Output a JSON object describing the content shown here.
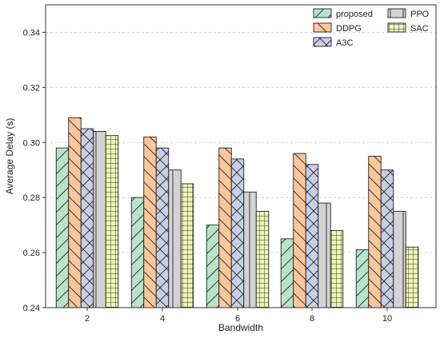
{
  "chart_data": {
    "type": "bar",
    "xlabel": "Bandwidth",
    "ylabel": "Average Delay (s)",
    "categories": [
      "2",
      "4",
      "6",
      "8",
      "10"
    ],
    "ylim": [
      0.24,
      0.35
    ],
    "yticks": [
      "0.24",
      "0.26",
      "0.28",
      "0.30",
      "0.32",
      "0.34"
    ],
    "grid": "horizontal-dashed",
    "legend_position": "top-right",
    "series": [
      {
        "name": "proposed",
        "color": "#b7e4c7",
        "hatch": "diagonal",
        "values": [
          0.298,
          0.28,
          0.27,
          0.265,
          0.261
        ]
      },
      {
        "name": "DDPG",
        "color": "#fcc69b",
        "hatch": "back-diagonal",
        "values": [
          0.309,
          0.302,
          0.298,
          0.296,
          0.295
        ]
      },
      {
        "name": "A3C",
        "color": "#c6cfe6",
        "hatch": "cross-diagonal",
        "values": [
          0.305,
          0.298,
          0.294,
          0.292,
          0.29
        ]
      },
      {
        "name": "PPO",
        "color": "#d3d3d3",
        "hatch": "vertical",
        "values": [
          0.304,
          0.29,
          0.282,
          0.278,
          0.275
        ]
      },
      {
        "name": "SAC",
        "color": "#eef5b5",
        "hatch": "grid",
        "values": [
          0.3025,
          0.285,
          0.275,
          0.268,
          0.262
        ]
      }
    ]
  }
}
